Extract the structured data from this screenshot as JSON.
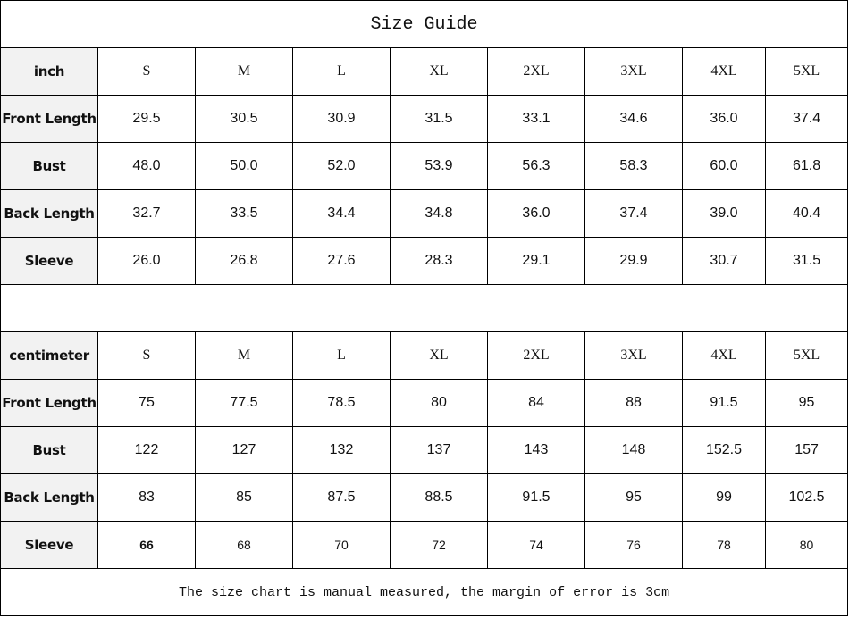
{
  "title": "Size Guide",
  "sizes": [
    "S",
    "M",
    "L",
    "XL",
    "2XL",
    "3XL",
    "4XL",
    "5XL"
  ],
  "inch": {
    "unit_label": "inch",
    "rows": [
      {
        "label": "Front Length",
        "values": [
          "29.5",
          "30.5",
          "30.9",
          "31.5",
          "33.1",
          "34.6",
          "36.0",
          "37.4"
        ]
      },
      {
        "label": "Bust",
        "values": [
          "48.0",
          "50.0",
          "52.0",
          "53.9",
          "56.3",
          "58.3",
          "60.0",
          "61.8"
        ]
      },
      {
        "label": "Back Length",
        "values": [
          "32.7",
          "33.5",
          "34.4",
          "34.8",
          "36.0",
          "37.4",
          "39.0",
          "40.4"
        ]
      },
      {
        "label": "Sleeve",
        "values": [
          "26.0",
          "26.8",
          "27.6",
          "28.3",
          "29.1",
          "29.9",
          "30.7",
          "31.5"
        ]
      }
    ]
  },
  "centimeter": {
    "unit_label": "centimeter",
    "rows": [
      {
        "label": "Front Length",
        "values": [
          "75",
          "77.5",
          "78.5",
          "80",
          "84",
          "88",
          "91.5",
          "95"
        ]
      },
      {
        "label": "Bust",
        "values": [
          "122",
          "127",
          "132",
          "137",
          "143",
          "148",
          "152.5",
          "157"
        ]
      },
      {
        "label": "Back Length",
        "values": [
          "83",
          "85",
          "87.5",
          "88.5",
          "91.5",
          "95",
          "99",
          "102.5"
        ]
      },
      {
        "label": "Sleeve",
        "values": [
          "66",
          "68",
          "70",
          "72",
          "74",
          "76",
          "78",
          "80"
        ]
      }
    ]
  },
  "note": "The size chart is manual measured, the margin of error is 3cm"
}
